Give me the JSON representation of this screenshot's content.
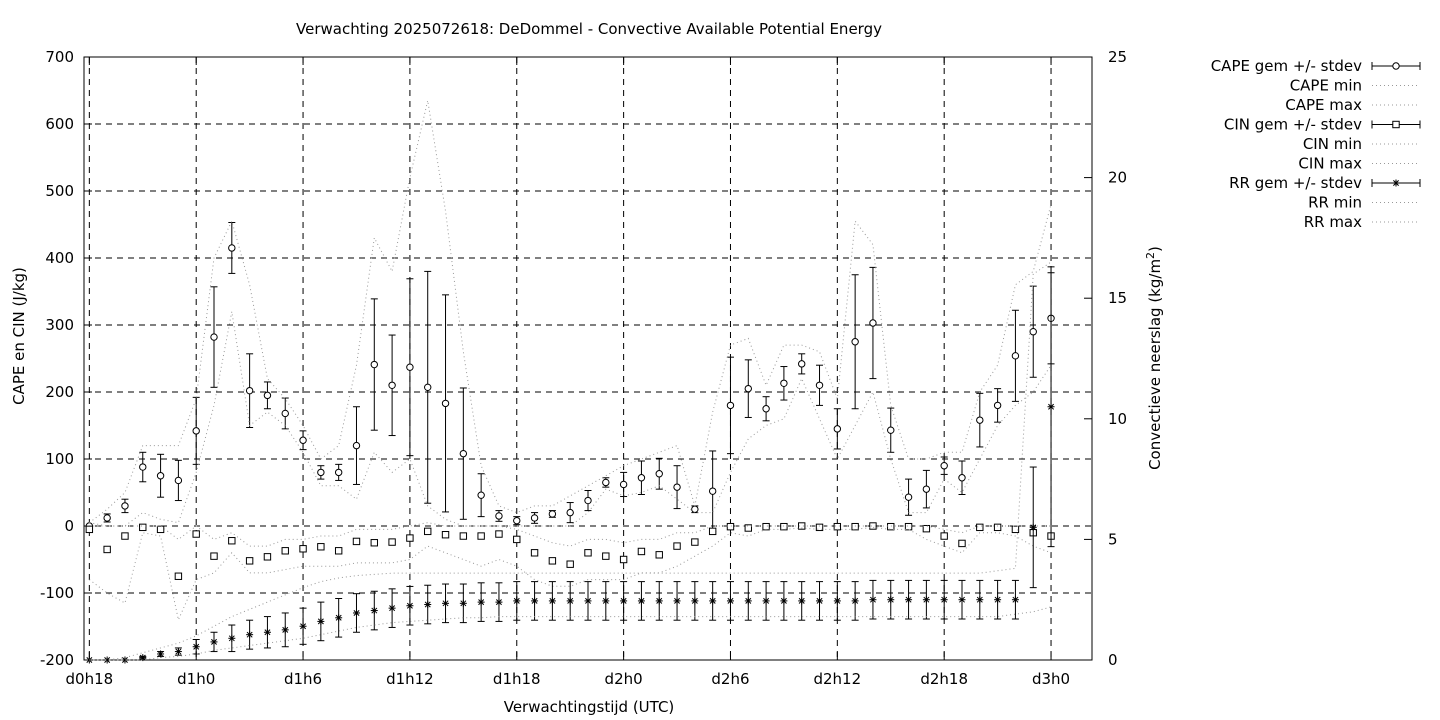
{
  "chart_data": {
    "type": "scatter",
    "title": "Verwachting 2025072618: DeDommel - Convective Available Potential Energy",
    "xlabel": "Verwachtingstijd (UTC)",
    "ylabel": "CAPE en CIN (J/kg)",
    "y2label_main": "Convectieve neerslag (kg/m",
    "y2label_sup": "2",
    "y2label_end": ")",
    "xlim": [
      -0.3,
      56.3
    ],
    "ylim": [
      -200,
      700
    ],
    "y2lim": [
      0,
      25
    ],
    "grid": true,
    "legend_position": "right",
    "x_ticks": [
      {
        "x": 0,
        "label": "d0h18"
      },
      {
        "x": 6,
        "label": "d1h0"
      },
      {
        "x": 12,
        "label": "d1h6"
      },
      {
        "x": 18,
        "label": "d1h12"
      },
      {
        "x": 24,
        "label": "d1h18"
      },
      {
        "x": 30,
        "label": "d2h0"
      },
      {
        "x": 36,
        "label": "d2h6"
      },
      {
        "x": 42,
        "label": "d2h12"
      },
      {
        "x": 48,
        "label": "d2h18"
      },
      {
        "x": 54,
        "label": "d3h0"
      }
    ],
    "y_ticks": [
      "-200",
      "-100",
      "0",
      "100",
      "200",
      "300",
      "400",
      "500",
      "600",
      "700"
    ],
    "y_tick_values": [
      -200,
      -100,
      0,
      100,
      200,
      300,
      400,
      500,
      600,
      700
    ],
    "y2_ticks": [
      "0",
      "5",
      "10",
      "15",
      "20",
      "25"
    ],
    "y2_tick_values": [
      0,
      5,
      10,
      15,
      20,
      25
    ],
    "x": [
      0,
      1,
      2,
      3,
      4,
      5,
      6,
      7,
      8,
      9,
      10,
      11,
      12,
      13,
      14,
      15,
      16,
      17,
      18,
      19,
      20,
      21,
      22,
      23,
      24,
      25,
      26,
      27,
      28,
      29,
      30,
      31,
      32,
      33,
      34,
      35,
      36,
      37,
      38,
      39,
      40,
      41,
      42,
      43,
      44,
      45,
      46,
      47,
      48,
      49,
      50,
      51,
      52,
      53,
      54
    ],
    "series": [
      {
        "name": "CAPE gem +/- stdev",
        "axis": "y1",
        "marker": "circle",
        "values": [
          0,
          12,
          30,
          88,
          75,
          68,
          142,
          282,
          415,
          202,
          195,
          168,
          128,
          80,
          80,
          120,
          241,
          210,
          237,
          207,
          183,
          108,
          46,
          15,
          8,
          12,
          18,
          20,
          38,
          65,
          62,
          72,
          78,
          58,
          25,
          52,
          180,
          205,
          175,
          213,
          242,
          210,
          145,
          275,
          303,
          143,
          43,
          55,
          90,
          72,
          158,
          180,
          254,
          290,
          310
        ],
        "stdev": [
          0,
          6,
          10,
          22,
          32,
          30,
          50,
          75,
          38,
          55,
          20,
          23,
          14,
          10,
          12,
          58,
          98,
          75,
          132,
          173,
          162,
          98,
          32,
          8,
          6,
          8,
          5,
          15,
          15,
          7,
          18,
          25,
          23,
          32,
          5,
          60,
          72,
          43,
          18,
          25,
          15,
          30,
          30,
          100,
          83,
          33,
          27,
          28,
          13,
          25,
          40,
          25,
          68,
          68,
          68
        ]
      },
      {
        "name": "CAPE min",
        "axis": "y1",
        "style": "dotted",
        "values": [
          0,
          0,
          0,
          20,
          10,
          5,
          80,
          180,
          320,
          150,
          170,
          150,
          110,
          60,
          60,
          40,
          110,
          80,
          100,
          30,
          10,
          0,
          0,
          0,
          0,
          0,
          0,
          0,
          20,
          55,
          45,
          50,
          60,
          40,
          20,
          20,
          80,
          130,
          150,
          160,
          220,
          160,
          100,
          150,
          200,
          100,
          20,
          20,
          70,
          50,
          100,
          150,
          180,
          200,
          240
        ]
      },
      {
        "name": "CAPE max",
        "axis": "y1",
        "style": "dotted",
        "values": [
          5,
          25,
          50,
          120,
          120,
          120,
          190,
          400,
          455,
          360,
          220,
          190,
          150,
          100,
          120,
          240,
          430,
          380,
          520,
          635,
          470,
          260,
          90,
          30,
          20,
          30,
          30,
          45,
          60,
          75,
          90,
          100,
          110,
          120,
          30,
          170,
          270,
          280,
          210,
          270,
          270,
          260,
          190,
          455,
          420,
          180,
          100,
          100,
          110,
          110,
          200,
          240,
          360,
          380,
          480
        ]
      },
      {
        "name": "CIN gem +/- stdev",
        "axis": "y1",
        "marker": "square",
        "values": [
          -5,
          -35,
          -15,
          -2,
          -5,
          -75,
          -12,
          -45,
          -22,
          -52,
          -46,
          -37,
          -34,
          -31,
          -37,
          -23,
          -25,
          -24,
          -18,
          -8,
          -13,
          -15,
          -15,
          -12,
          -20,
          -40,
          -52,
          -57,
          -40,
          -45,
          -50,
          -38,
          -43,
          -30,
          -24,
          -8,
          -1,
          -3,
          -1,
          -1,
          0,
          -2,
          -1,
          -1,
          0,
          -1,
          -1,
          -4,
          -15,
          -26,
          -2,
          -2,
          -5,
          -10,
          -15
        ]
      },
      {
        "name": "CIN min",
        "axis": "y1",
        "style": "dotted",
        "values": [
          -80,
          -100,
          -115,
          -10,
          -15,
          -140,
          -80,
          -70,
          -40,
          -70,
          -70,
          -65,
          -60,
          -60,
          -60,
          -55,
          -55,
          -55,
          -50,
          -30,
          -40,
          -50,
          -60,
          -50,
          -60,
          -80,
          -90,
          -90,
          -80,
          -80,
          -80,
          -70,
          -70,
          -60,
          -45,
          -30,
          -10,
          -15,
          -5,
          -5,
          -3,
          -5,
          -5,
          -5,
          -2,
          -5,
          -5,
          -20,
          -30,
          -40,
          -10,
          -10,
          -15,
          -30,
          -40
        ]
      },
      {
        "name": "CIN max",
        "axis": "y1",
        "style": "dotted",
        "values": [
          5,
          0,
          0,
          0,
          0,
          -20,
          0,
          -20,
          -10,
          -30,
          -30,
          -20,
          -20,
          -15,
          -15,
          -5,
          -5,
          -5,
          0,
          5,
          0,
          0,
          0,
          0,
          -5,
          -15,
          -25,
          -30,
          -20,
          -20,
          -25,
          -20,
          -20,
          -10,
          -10,
          0,
          0,
          0,
          0,
          0,
          0,
          0,
          0,
          0,
          0,
          0,
          0,
          0,
          -5,
          -10,
          0,
          0,
          0,
          0,
          0
        ]
      },
      {
        "name": "RR gem +/- stdev",
        "axis": "y2",
        "marker": "star",
        "values": [
          0,
          0,
          0,
          0.1,
          0.25,
          0.35,
          0.55,
          0.75,
          0.9,
          1.05,
          1.15,
          1.25,
          1.4,
          1.6,
          1.75,
          1.95,
          2.05,
          2.15,
          2.25,
          2.3,
          2.35,
          2.35,
          2.4,
          2.4,
          2.45,
          2.45,
          2.45,
          2.45,
          2.45,
          2.45,
          2.45,
          2.45,
          2.45,
          2.45,
          2.45,
          2.45,
          2.45,
          2.45,
          2.45,
          2.45,
          2.45,
          2.45,
          2.45,
          2.45,
          2.5,
          2.5,
          2.5,
          2.5,
          2.5,
          2.5,
          2.5,
          2.5,
          2.5,
          5.5,
          10.5
        ],
        "stdev": [
          0,
          0,
          0,
          0.05,
          0.1,
          0.15,
          0.3,
          0.4,
          0.55,
          0.6,
          0.65,
          0.7,
          0.75,
          0.8,
          0.8,
          0.8,
          0.8,
          0.8,
          0.8,
          0.8,
          0.8,
          0.8,
          0.8,
          0.8,
          0.8,
          0.8,
          0.8,
          0.8,
          0.8,
          0.8,
          0.8,
          0.8,
          0.8,
          0.8,
          0.8,
          0.8,
          0.8,
          0.8,
          0.8,
          0.8,
          0.8,
          0.8,
          0.8,
          0.8,
          0.8,
          0.8,
          0.8,
          0.8,
          0.8,
          0.8,
          0.8,
          0.8,
          0.8,
          2.5,
          5.8
        ]
      },
      {
        "name": "RR min",
        "axis": "y2",
        "style": "dotted",
        "values": [
          0,
          0,
          0,
          0,
          0.1,
          0.15,
          0.25,
          0.4,
          0.5,
          0.6,
          0.7,
          0.8,
          0.9,
          1.05,
          1.2,
          1.35,
          1.45,
          1.55,
          1.6,
          1.65,
          1.7,
          1.75,
          1.75,
          1.8,
          1.8,
          1.8,
          1.8,
          1.8,
          1.8,
          1.8,
          1.8,
          1.8,
          1.8,
          1.8,
          1.8,
          1.8,
          1.8,
          1.8,
          1.8,
          1.8,
          1.8,
          1.8,
          1.8,
          1.8,
          1.8,
          1.8,
          1.8,
          1.8,
          1.8,
          1.8,
          1.8,
          1.8,
          1.9,
          2.0,
          2.2
        ]
      },
      {
        "name": "RR max",
        "axis": "y2",
        "style": "dotted",
        "values": [
          0,
          0,
          0.1,
          0.3,
          0.5,
          0.7,
          1.0,
          1.4,
          1.8,
          2.1,
          2.4,
          2.7,
          3.0,
          3.25,
          3.4,
          3.5,
          3.55,
          3.6,
          3.6,
          3.6,
          3.6,
          3.6,
          3.6,
          3.6,
          3.6,
          3.6,
          3.6,
          3.6,
          3.6,
          3.6,
          3.6,
          3.6,
          3.6,
          3.6,
          3.6,
          3.6,
          3.6,
          3.6,
          3.6,
          3.6,
          3.6,
          3.6,
          3.6,
          3.6,
          3.6,
          3.6,
          3.6,
          3.6,
          3.6,
          3.6,
          3.6,
          3.7,
          3.8,
          16.0,
          16.5
        ]
      }
    ]
  }
}
